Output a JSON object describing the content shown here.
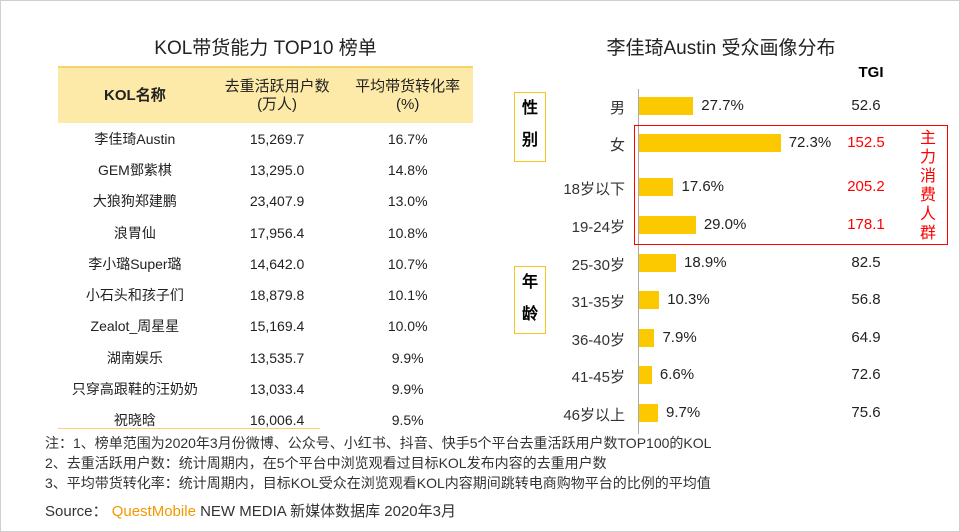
{
  "left": {
    "title": "KOL带货能力 TOP10 榜单",
    "headers": [
      "KOL名称",
      "去重活跃用户数\n(万人)",
      "平均带货转化率\n(%)"
    ],
    "rows": [
      [
        "李佳琦Austin",
        "15,269.7",
        "16.7%"
      ],
      [
        "GEM鄧紫棋",
        "13,295.0",
        "14.8%"
      ],
      [
        "大狼狗郑建鹏",
        "23,407.9",
        "13.0%"
      ],
      [
        "浪胃仙",
        "17,956.4",
        "10.8%"
      ],
      [
        "李小璐Super璐",
        "14,642.0",
        "10.7%"
      ],
      [
        "小石头和孩子们",
        "18,879.8",
        "10.1%"
      ],
      [
        "Zealot_周星星",
        "15,169.4",
        "10.0%"
      ],
      [
        "湖南娱乐",
        "13,535.7",
        "9.9%"
      ],
      [
        "只穿高跟鞋的汪奶奶",
        "13,033.4",
        "9.9%"
      ],
      [
        "祝晓晗",
        "16,006.4",
        "9.5%"
      ]
    ]
  },
  "chart_data": {
    "type": "bar",
    "title": "李佳琦Austin 受众画像分布",
    "tgi_header": "TGI",
    "groups": [
      {
        "label": "性别",
        "start": 0,
        "end": 1
      },
      {
        "label": "年龄",
        "start": 2,
        "end": 8
      }
    ],
    "categories": [
      "男",
      "女",
      "18岁以下",
      "19-24岁",
      "25-30岁",
      "31-35岁",
      "36-40岁",
      "41-45岁",
      "46岁以上"
    ],
    "values": [
      27.7,
      72.3,
      17.6,
      29.0,
      18.9,
      10.3,
      7.9,
      6.6,
      9.7
    ],
    "value_labels": [
      "27.7%",
      "72.3%",
      "17.6%",
      "29.0%",
      "18.9%",
      "10.3%",
      "7.9%",
      "6.6%",
      "9.7%"
    ],
    "tgi": [
      "52.6",
      "152.5",
      "205.2",
      "178.1",
      "82.5",
      "56.8",
      "64.9",
      "72.6",
      "75.6"
    ],
    "highlight": [
      1,
      2,
      3
    ],
    "highlight_label": "主力消费人群",
    "bar_color": "#fcc800",
    "highlight_color": "#ff0000"
  },
  "footer": {
    "notes": [
      "注：1、榜单范围为2020年3月份微博、公众号、小红书、抖音、快手5个平台去重活跃用户数TOP100的KOL",
      "2、去重活跃用户数：统计周期内，在5个平台中浏览观看过目标KOL发布内容的去重用户数",
      "3、平均带货转化率：统计周期内，目标KOL受众在浏览观看KOL内容期间跳转电商购物平台的比例的平均值"
    ],
    "source_prefix": "Source：",
    "source_brand": "QuestMobile",
    "source_rest": "NEW MEDIA 新媒体数据库 2020年3月"
  }
}
